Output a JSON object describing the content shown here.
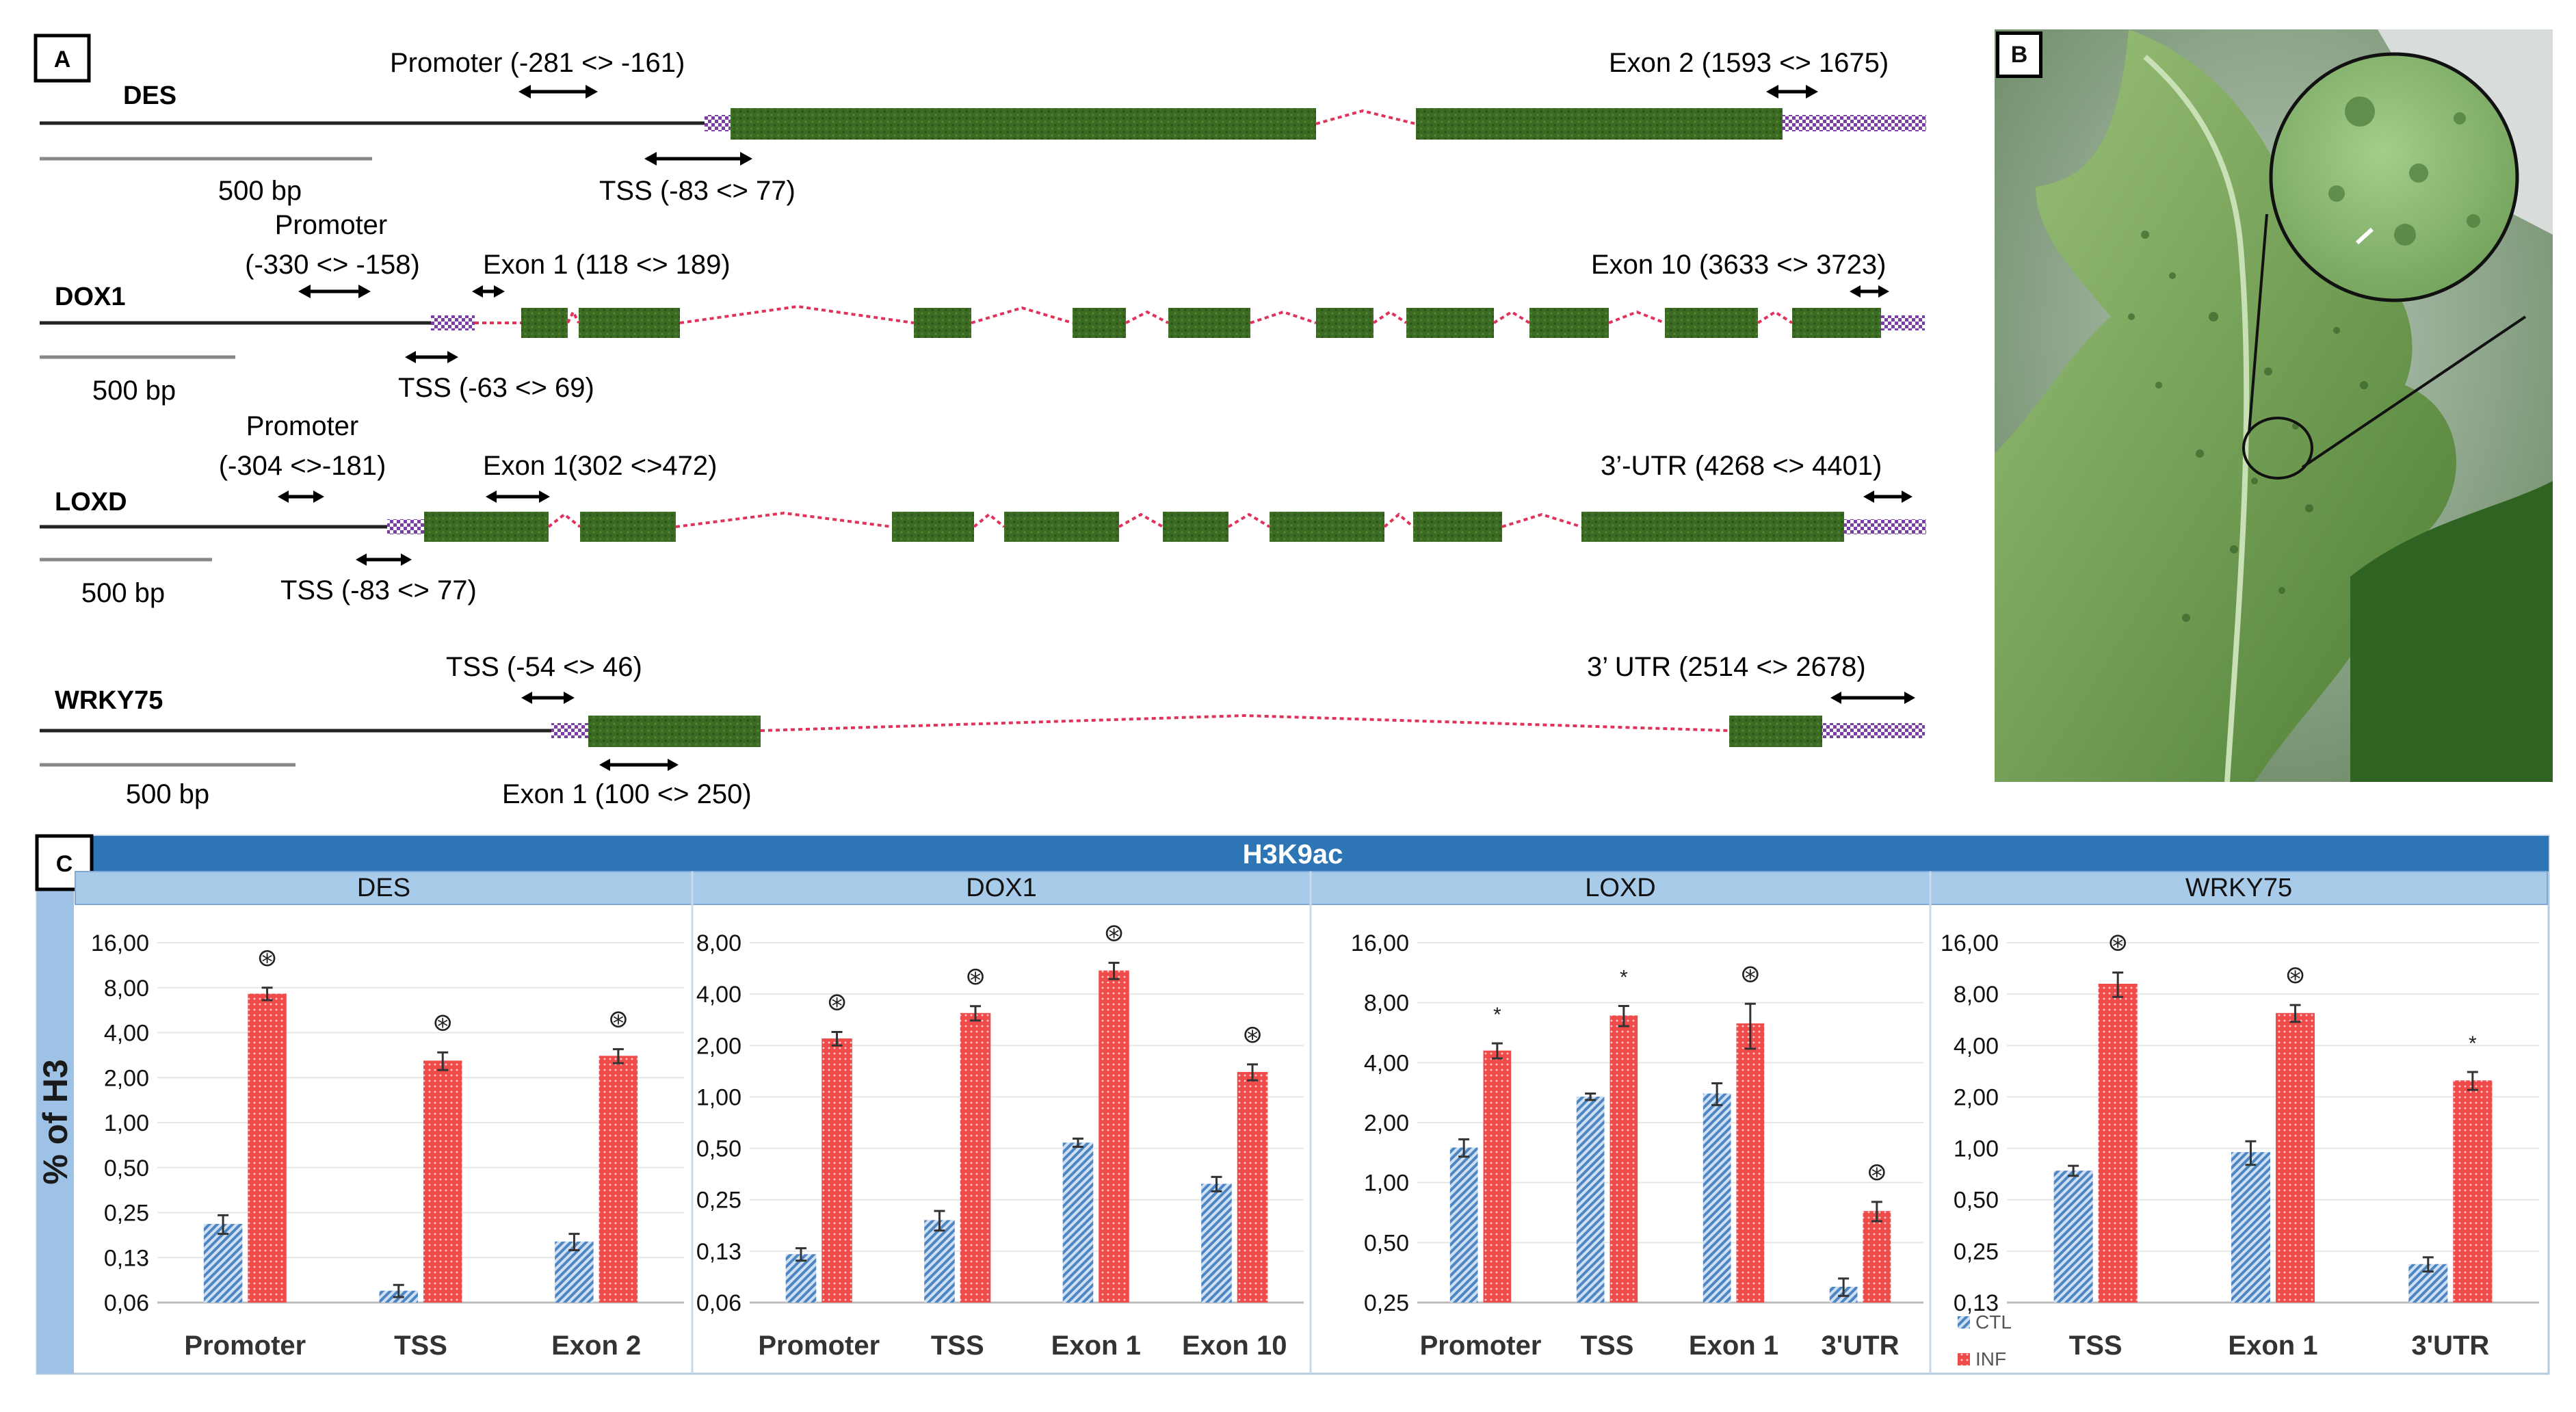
{
  "panel_labels": {
    "a": "A",
    "b": "B",
    "c": "C"
  },
  "genes": [
    {
      "name": "DES",
      "scale_label": "500 bp",
      "regions": [
        {
          "label": "Promoter (-281 <> -161)"
        },
        {
          "label": "Exon 2 (1593 <> 1675)"
        },
        {
          "label": "TSS (-83 <> 77)"
        }
      ]
    },
    {
      "name": "DOX1",
      "scale_label": "500 bp",
      "promoter_title": "Promoter",
      "regions": [
        {
          "label": "(-330 <> -158)"
        },
        {
          "label": "Exon 1 (118 <> 189)"
        },
        {
          "label": "Exon 10 (3633 <> 3723)"
        },
        {
          "label": "TSS (-63 <> 69)"
        }
      ]
    },
    {
      "name": "LOXD",
      "scale_label": "500 bp",
      "promoter_title": "Promoter",
      "regions": [
        {
          "label": "(-304 <>-181)"
        },
        {
          "label": "Exon 1(302 <>472)"
        },
        {
          "label": "3’-UTR  (4268 <> 4401)"
        },
        {
          "label": "TSS  (-83 <> 77)"
        }
      ]
    },
    {
      "name": "WRKY75",
      "scale_label": "500 bp",
      "regions": [
        {
          "label": "TSS (-54 <> 46)"
        },
        {
          "label": "3’ UTR (2514 <> 2678)"
        },
        {
          "label": "Exon 1 (100 <> 250)"
        }
      ]
    }
  ],
  "panel_c": {
    "banner": "H3K9ac",
    "ylabel": "% of H3",
    "legend": [
      {
        "label": "CTL",
        "color": "#5b8fc7"
      },
      {
        "label": "INF",
        "color": "#ef4b4b"
      }
    ],
    "significance_circled": "⊛",
    "significance_plain": "*"
  },
  "chart_data": [
    {
      "type": "bar",
      "title": "DES",
      "ylabel": "% of H3",
      "yscale": "log2",
      "yticks": [
        "0,06",
        "0,13",
        "0,25",
        "0,50",
        "1,00",
        "2,00",
        "4,00",
        "8,00",
        "16,00"
      ],
      "ylim": [
        0.0625,
        16
      ],
      "categories": [
        "Promoter",
        "TSS",
        "Exon 2"
      ],
      "series": [
        {
          "name": "CTL",
          "values": [
            0.21,
            0.075,
            0.16
          ],
          "errors": [
            0.03,
            0.007,
            0.02
          ]
        },
        {
          "name": "INF",
          "values": [
            7.3,
            2.6,
            2.8
          ],
          "errors": [
            0.7,
            0.35,
            0.3
          ]
        }
      ],
      "significance": [
        "circled",
        "circled",
        "circled"
      ]
    },
    {
      "type": "bar",
      "title": "DOX1",
      "ylabel": "% of H3",
      "yscale": "log2",
      "yticks": [
        "0,06",
        "0,13",
        "0,25",
        "0,50",
        "1,00",
        "2,00",
        "4,00",
        "8,00"
      ],
      "ylim": [
        0.0625,
        8
      ],
      "categories": [
        "Promoter",
        "TSS",
        "Exon 1",
        "Exon 10"
      ],
      "series": [
        {
          "name": "CTL",
          "values": [
            0.12,
            0.19,
            0.54,
            0.31
          ],
          "errors": [
            0.01,
            0.025,
            0.03,
            0.03
          ]
        },
        {
          "name": "INF",
          "values": [
            2.2,
            3.1,
            5.5,
            1.4
          ],
          "errors": [
            0.2,
            0.3,
            0.6,
            0.15
          ]
        }
      ],
      "significance": [
        "circled",
        "circled",
        "circled",
        "circled"
      ]
    },
    {
      "type": "bar",
      "title": "LOXD",
      "ylabel": "% of H3",
      "yscale": "log2",
      "yticks": [
        "0,25",
        "0,50",
        "1,00",
        "2,00",
        "4,00",
        "8,00",
        "16,00"
      ],
      "ylim": [
        0.25,
        16
      ],
      "categories": [
        "Promoter",
        "TSS",
        "Exon 1",
        "3'UTR"
      ],
      "series": [
        {
          "name": "CTL",
          "values": [
            1.5,
            2.7,
            2.8,
            0.3
          ],
          "errors": [
            0.15,
            0.1,
            0.35,
            0.03
          ]
        },
        {
          "name": "INF",
          "values": [
            4.6,
            6.9,
            6.3,
            0.72
          ],
          "errors": [
            0.4,
            0.8,
            1.6,
            0.08
          ]
        }
      ],
      "significance": [
        "plain",
        "plain",
        "circled",
        "circled"
      ]
    },
    {
      "type": "bar",
      "title": "WRKY75",
      "ylabel": "% of H3",
      "yscale": "log2",
      "yticks": [
        "0,13",
        "0,25",
        "0,50",
        "1,00",
        "2,00",
        "4,00",
        "8,00",
        "16,00"
      ],
      "ylim": [
        0.125,
        16
      ],
      "categories": [
        "TSS",
        "Exon 1",
        "3'UTR"
      ],
      "series": [
        {
          "name": "CTL",
          "values": [
            0.74,
            0.95,
            0.21
          ],
          "errors": [
            0.05,
            0.15,
            0.02
          ]
        },
        {
          "name": "INF",
          "values": [
            9.2,
            6.2,
            2.5
          ],
          "errors": [
            1.5,
            0.7,
            0.3
          ]
        }
      ],
      "significance": [
        "circled",
        "circled",
        "plain"
      ]
    }
  ]
}
